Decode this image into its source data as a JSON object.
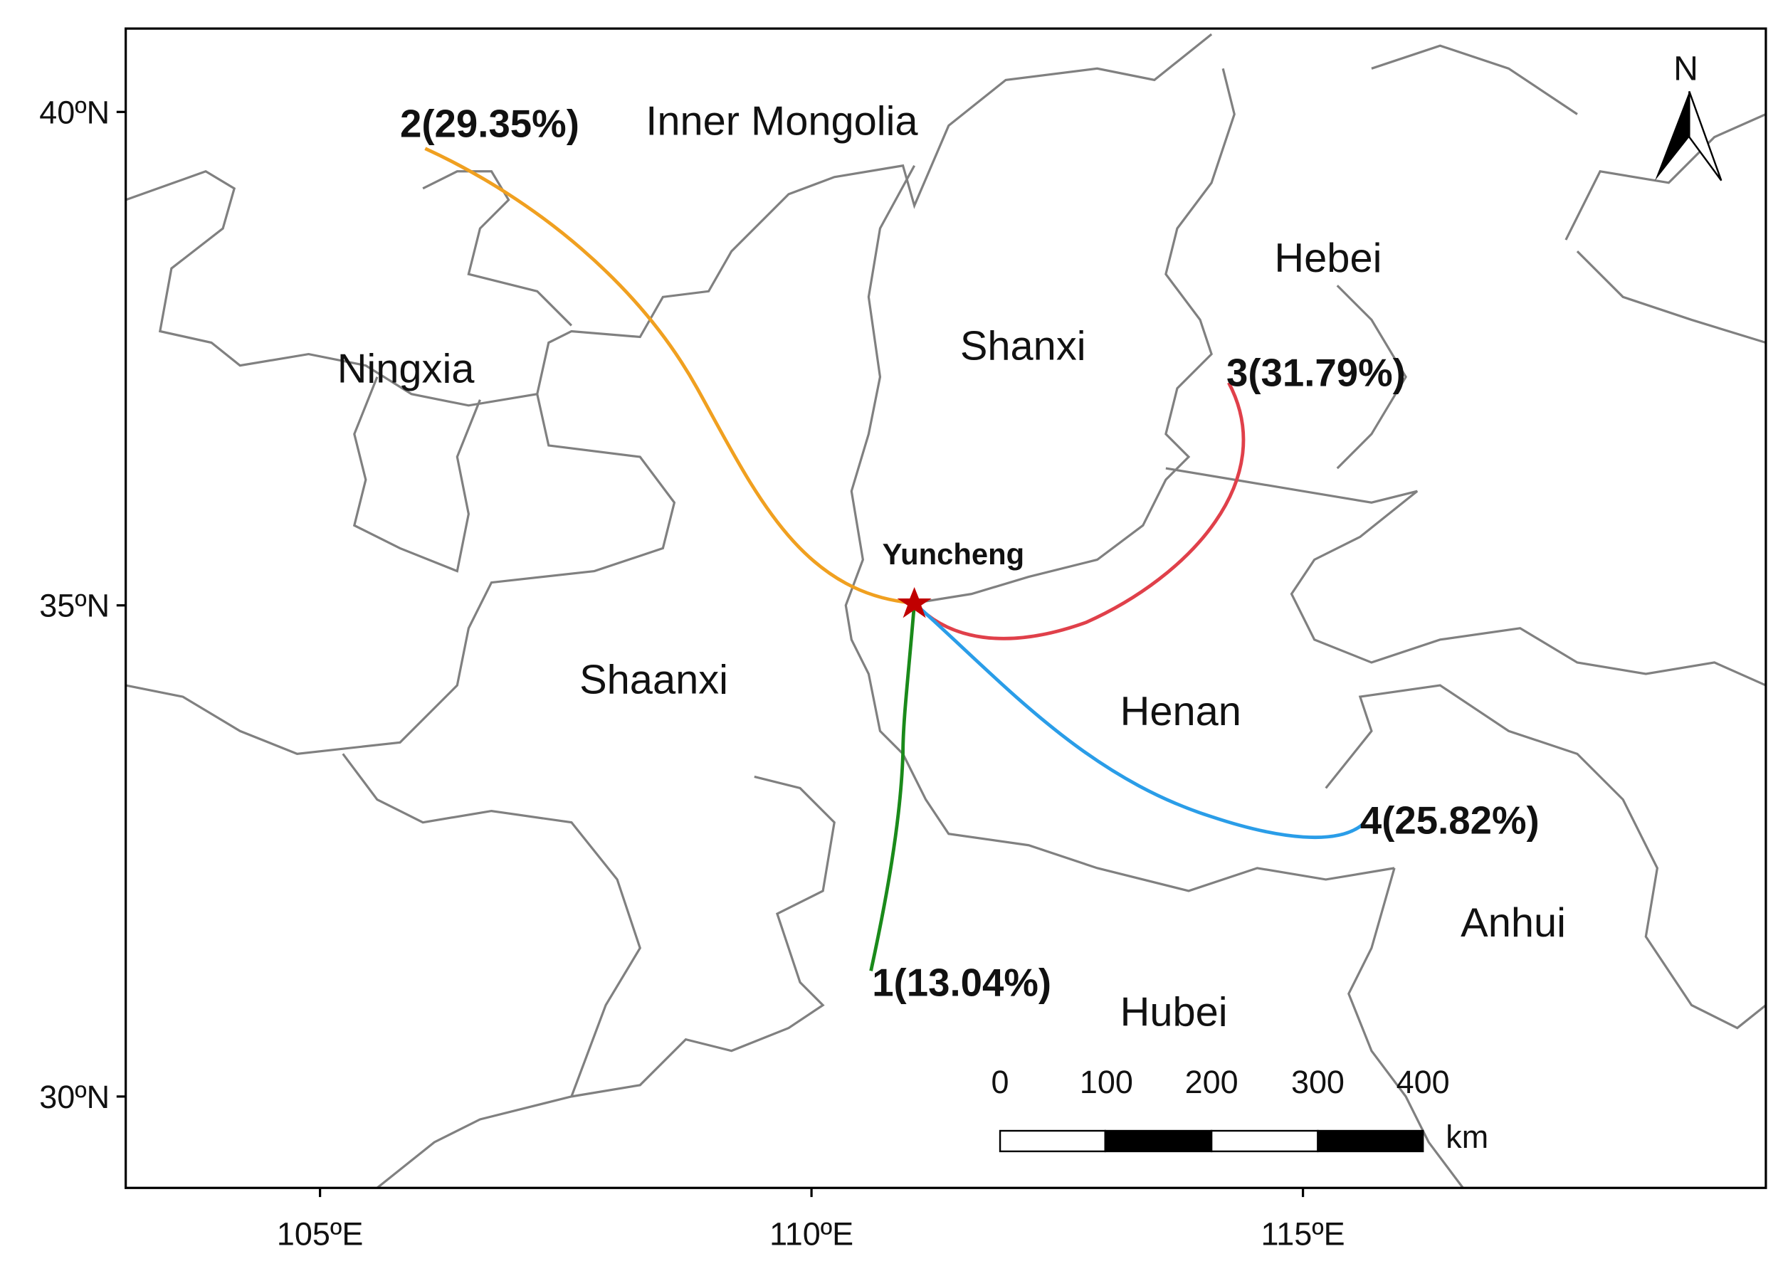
{
  "map": {
    "regions": [
      "Inner Mongolia",
      "Hebei",
      "Shanxi",
      "Ningxia",
      "Shaanxi",
      "Henan",
      "Anhui",
      "Hubei"
    ],
    "origin": "Yuncheng",
    "trajectories": [
      {
        "label": "1(13.04%)",
        "color": "#1a8a1a"
      },
      {
        "label": "2(29.35%)",
        "color": "#f0a020"
      },
      {
        "label": "3(31.79%)",
        "color": "#e0404a"
      },
      {
        "label": "4(25.82%)",
        "color": "#2a9de8"
      }
    ],
    "lat_ticks": [
      "40ºN",
      "35ºN",
      "30ºN"
    ],
    "lon_ticks": [
      "105ºE",
      "110ºE",
      "115ºE"
    ],
    "scale_bar": {
      "ticks": [
        0,
        100,
        200,
        300,
        400
      ],
      "unit": "km"
    },
    "north": "N"
  }
}
